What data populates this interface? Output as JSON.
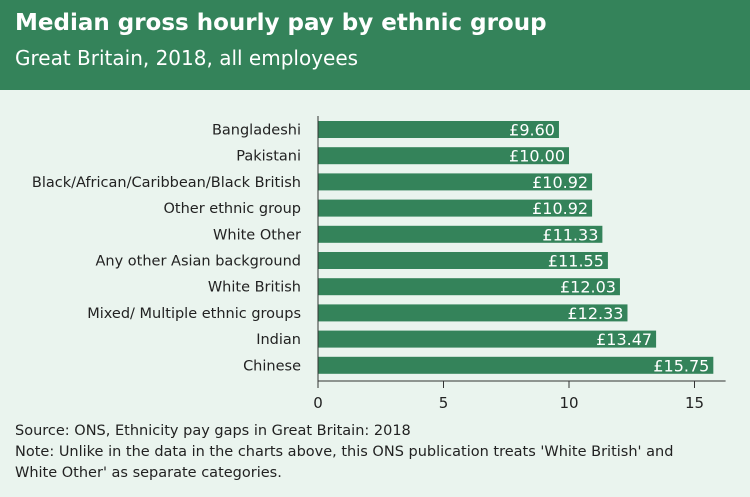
{
  "header": {
    "title": "Median gross hourly pay by ethnic group",
    "subtitle": "Great Britain, 2018, all employees"
  },
  "colors": {
    "header_bg": "#34835a",
    "bar": "#34835a",
    "background": "#eaf4ee"
  },
  "chart_data": {
    "type": "bar",
    "orientation": "horizontal",
    "categories": [
      "Bangladeshi",
      "Pakistani",
      "Black/African/Caribbean/Black British",
      "Other ethnic group",
      "White Other",
      "Any other Asian background",
      "White British",
      "Mixed/ Multiple ethnic groups",
      "Indian",
      "Chinese"
    ],
    "values": [
      9.6,
      10.0,
      10.92,
      10.92,
      11.33,
      11.55,
      12.03,
      12.33,
      13.47,
      15.75
    ],
    "data_labels": [
      "£9.60",
      "£10.00",
      "£10.92",
      "£10.92",
      "£11.33",
      "£11.55",
      "£12.03",
      "£12.33",
      "£13.47",
      "£15.75"
    ],
    "x_ticks": [
      0,
      5,
      10,
      15
    ],
    "xlim": [
      0,
      16
    ],
    "grid": false,
    "legend": "none"
  },
  "footer": {
    "source": "Source: ONS, Ethnicity pay gaps in Great Britain: 2018",
    "note_line1": "Note: Unlike in the data in the charts above, this ONS publication treats 'White British' and",
    "note_line2": "White Other' as separate categories."
  }
}
